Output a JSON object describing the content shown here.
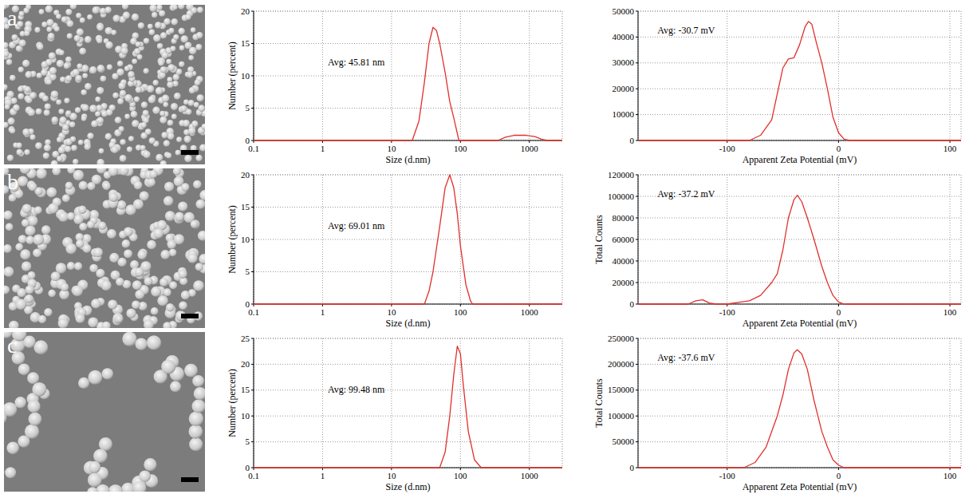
{
  "panel_labels": [
    "a",
    "b",
    "c"
  ],
  "chart_data": [
    {
      "type": "line",
      "x_label": "Size (d.nm)",
      "y_label": "Number (percent)",
      "annotation": "Avg: 45.81 nm",
      "log": "x",
      "grid": true,
      "color": "#e0302c",
      "xlim": [
        0.1,
        3000
      ],
      "xticks": [
        0.1,
        1,
        10,
        100,
        1000
      ],
      "ylim": [
        0,
        20
      ],
      "yticks": [
        0,
        5,
        10,
        15,
        20
      ],
      "x": [
        0.1,
        20,
        25,
        30,
        35,
        40,
        45,
        50,
        60,
        70,
        80,
        95,
        350,
        450,
        600,
        900,
        1200,
        1500,
        1800,
        3000
      ],
      "values": [
        0,
        0,
        3,
        9,
        15,
        17.5,
        17,
        15,
        10.5,
        6,
        3.5,
        0,
        0,
        0.5,
        0.8,
        0.8,
        0.6,
        0.2,
        0,
        0
      ]
    },
    {
      "type": "line",
      "x_label": "Apparent Zeta Potential (mV)",
      "annotation": "Avg: -30.7 mV",
      "grid": true,
      "color": "#e0302c",
      "xlim": [
        -180,
        110
      ],
      "xticks": [
        -100,
        0,
        100
      ],
      "ylim": [
        0,
        50000
      ],
      "yticks": [
        0,
        10000,
        20000,
        30000,
        40000,
        50000
      ],
      "x": [
        -180,
        -80,
        -70,
        -60,
        -55,
        -50,
        -45,
        -40,
        -35,
        -30,
        -27,
        -24,
        -20,
        -15,
        -10,
        -5,
        0,
        5,
        10,
        110
      ],
      "values": [
        0,
        0,
        2000,
        8000,
        18000,
        28000,
        31500,
        32000,
        37000,
        44000,
        46000,
        45000,
        38000,
        30000,
        20000,
        9000,
        3000,
        500,
        0,
        0
      ]
    },
    {
      "type": "line",
      "x_label": "Size (d.nm)",
      "y_label": "Number (percent)",
      "annotation": "Avg: 69.01 nm",
      "log": "x",
      "grid": true,
      "color": "#e0302c",
      "xlim": [
        0.1,
        3000
      ],
      "xticks": [
        0.1,
        1,
        10,
        100,
        1000
      ],
      "ylim": [
        0,
        20
      ],
      "yticks": [
        0,
        5,
        10,
        15,
        20
      ],
      "x": [
        0.1,
        30,
        35,
        40,
        50,
        60,
        70,
        80,
        90,
        100,
        120,
        140,
        150,
        3000
      ],
      "values": [
        0,
        0,
        2,
        5,
        12,
        18,
        20,
        18,
        14,
        9,
        3,
        0.5,
        0,
        0
      ]
    },
    {
      "type": "line",
      "x_label": "Apparent Zeta Potential (mV)",
      "y_label": "Total Counts",
      "annotation": "Avg: -37.2 mV",
      "grid": true,
      "color": "#e0302c",
      "xlim": [
        -180,
        110
      ],
      "xticks": [
        -100,
        0,
        100
      ],
      "ylim": [
        0,
        120000
      ],
      "yticks": [
        0,
        20000,
        40000,
        60000,
        80000,
        100000,
        120000
      ],
      "x": [
        -180,
        -135,
        -128,
        -122,
        -116,
        -110,
        -100,
        -90,
        -80,
        -70,
        -60,
        -55,
        -50,
        -45,
        -40,
        -37,
        -33,
        -28,
        -22,
        -15,
        -10,
        -5,
        0,
        5,
        110
      ],
      "values": [
        0,
        0,
        3000,
        4000,
        1000,
        0,
        0,
        1500,
        3000,
        8000,
        20000,
        28000,
        50000,
        80000,
        97000,
        101000,
        95000,
        80000,
        60000,
        35000,
        20000,
        8000,
        2000,
        0,
        0
      ]
    },
    {
      "type": "line",
      "x_label": "Size (d.nm)",
      "y_label": "Number (percent)",
      "annotation": "Avg: 99.48 nm",
      "log": "x",
      "grid": true,
      "color": "#e0302c",
      "xlim": [
        0.1,
        3000
      ],
      "xticks": [
        0.1,
        1,
        10,
        100,
        1000
      ],
      "ylim": [
        0,
        25
      ],
      "yticks": [
        0,
        5,
        10,
        15,
        20,
        25
      ],
      "x": [
        0.1,
        50,
        60,
        70,
        80,
        90,
        100,
        110,
        130,
        160,
        200,
        3000
      ],
      "values": [
        0,
        0,
        3,
        10,
        18,
        23.5,
        22,
        16,
        7,
        1.5,
        0,
        0
      ]
    },
    {
      "type": "line",
      "x_label": "Apparent Zeta Potential (mV)",
      "y_label": "Total Counts",
      "annotation": "Avg: -37.6 mV",
      "grid": true,
      "color": "#e0302c",
      "xlim": [
        -180,
        110
      ],
      "xticks": [
        -100,
        0,
        100
      ],
      "ylim": [
        0,
        250000
      ],
      "yticks": [
        0,
        50000,
        100000,
        150000,
        200000,
        250000
      ],
      "x": [
        -180,
        -85,
        -75,
        -65,
        -55,
        -50,
        -45,
        -40,
        -37,
        -33,
        -28,
        -22,
        -15,
        -10,
        -5,
        0,
        5,
        110
      ],
      "values": [
        0,
        0,
        10000,
        40000,
        100000,
        140000,
        190000,
        222000,
        228000,
        220000,
        190000,
        130000,
        70000,
        40000,
        15000,
        5000,
        0,
        0
      ]
    }
  ]
}
